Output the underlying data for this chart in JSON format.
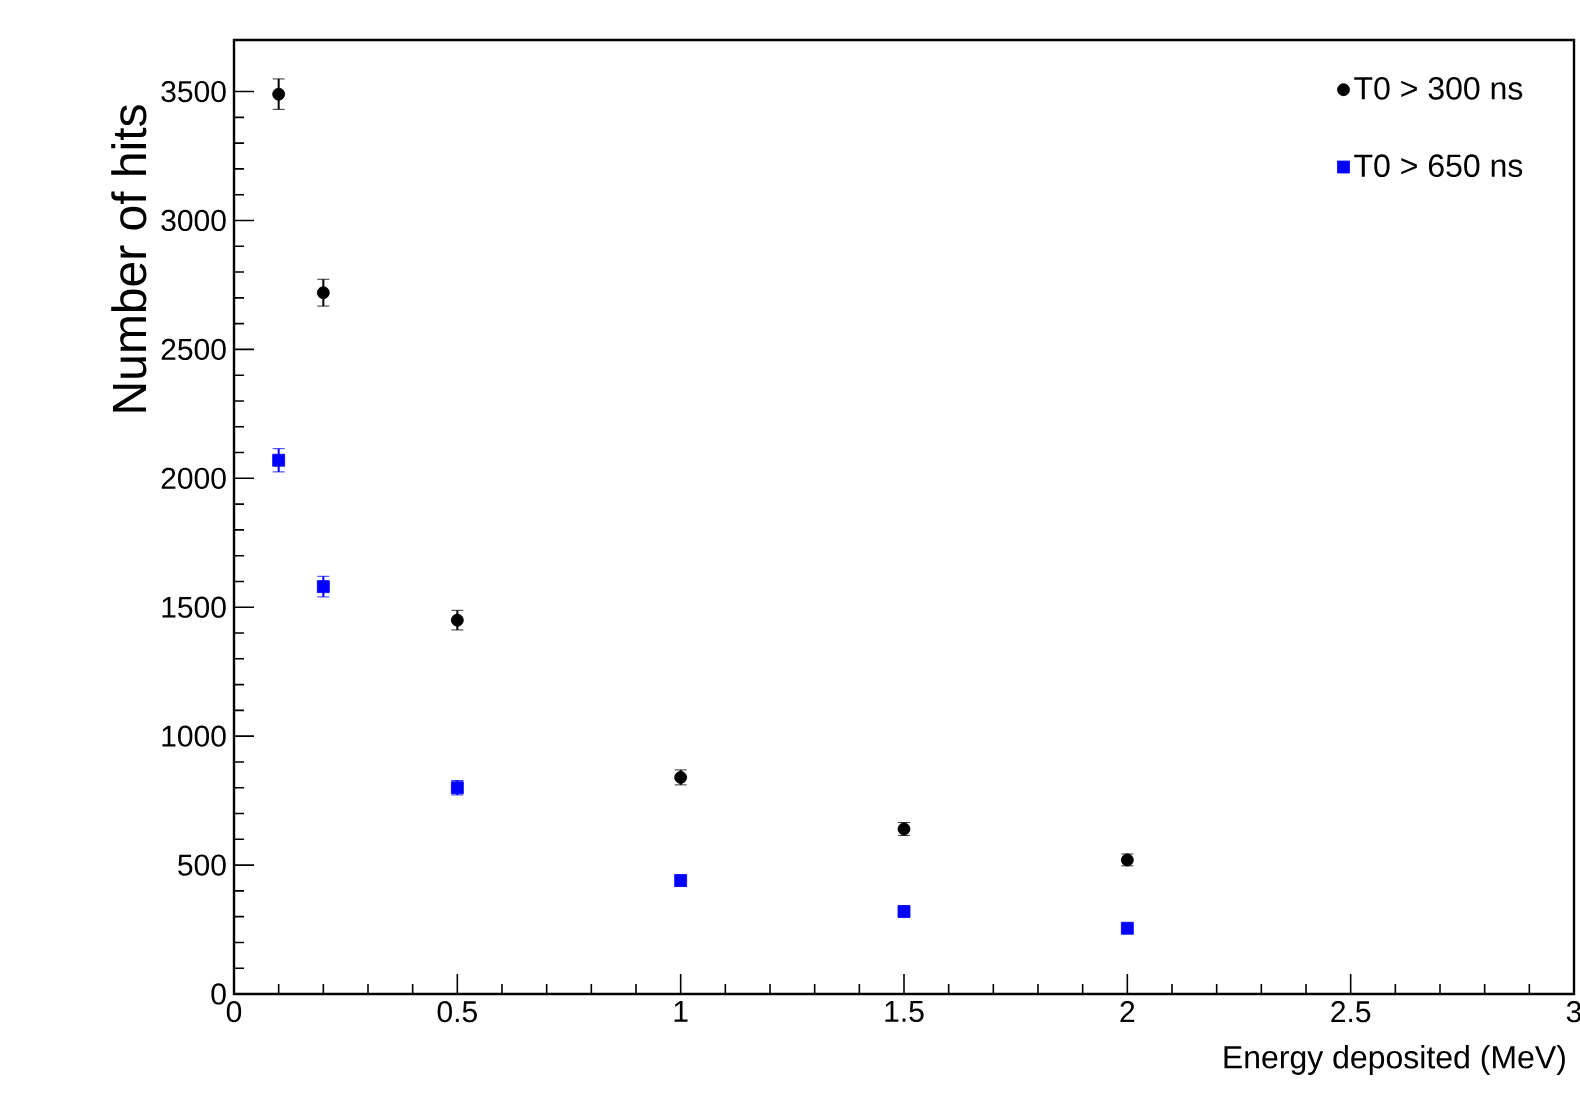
{
  "chart_data": {
    "type": "scatter",
    "xlabel": "Energy deposited (MeV)",
    "ylabel": "Number of hits",
    "xlim": [
      0,
      3
    ],
    "ylim": [
      0,
      3700
    ],
    "xticks": [
      0,
      0.5,
      1,
      1.5,
      2,
      2.5,
      3
    ],
    "yticks": [
      0,
      500,
      1000,
      1500,
      2000,
      2500,
      3000,
      3500
    ],
    "legend": "top right",
    "grid": false,
    "series": [
      {
        "name": "T0 > 300 ns",
        "color": "#000000",
        "marker": "circle",
        "x": [
          0.1,
          0.2,
          0.5,
          1,
          1.5,
          2
        ],
        "values": [
          3490,
          2720,
          1450,
          840,
          640,
          520
        ],
        "errors": [
          59,
          52,
          38,
          29,
          25,
          23
        ]
      },
      {
        "name": "T0 > 650 ns",
        "color": "#0000ff",
        "marker": "square",
        "x": [
          0.1,
          0.2,
          0.5,
          1,
          1.5,
          2
        ],
        "values": [
          2070,
          1580,
          800,
          440,
          320,
          255
        ],
        "errors": [
          45,
          40,
          28,
          21,
          18,
          16
        ]
      }
    ]
  }
}
